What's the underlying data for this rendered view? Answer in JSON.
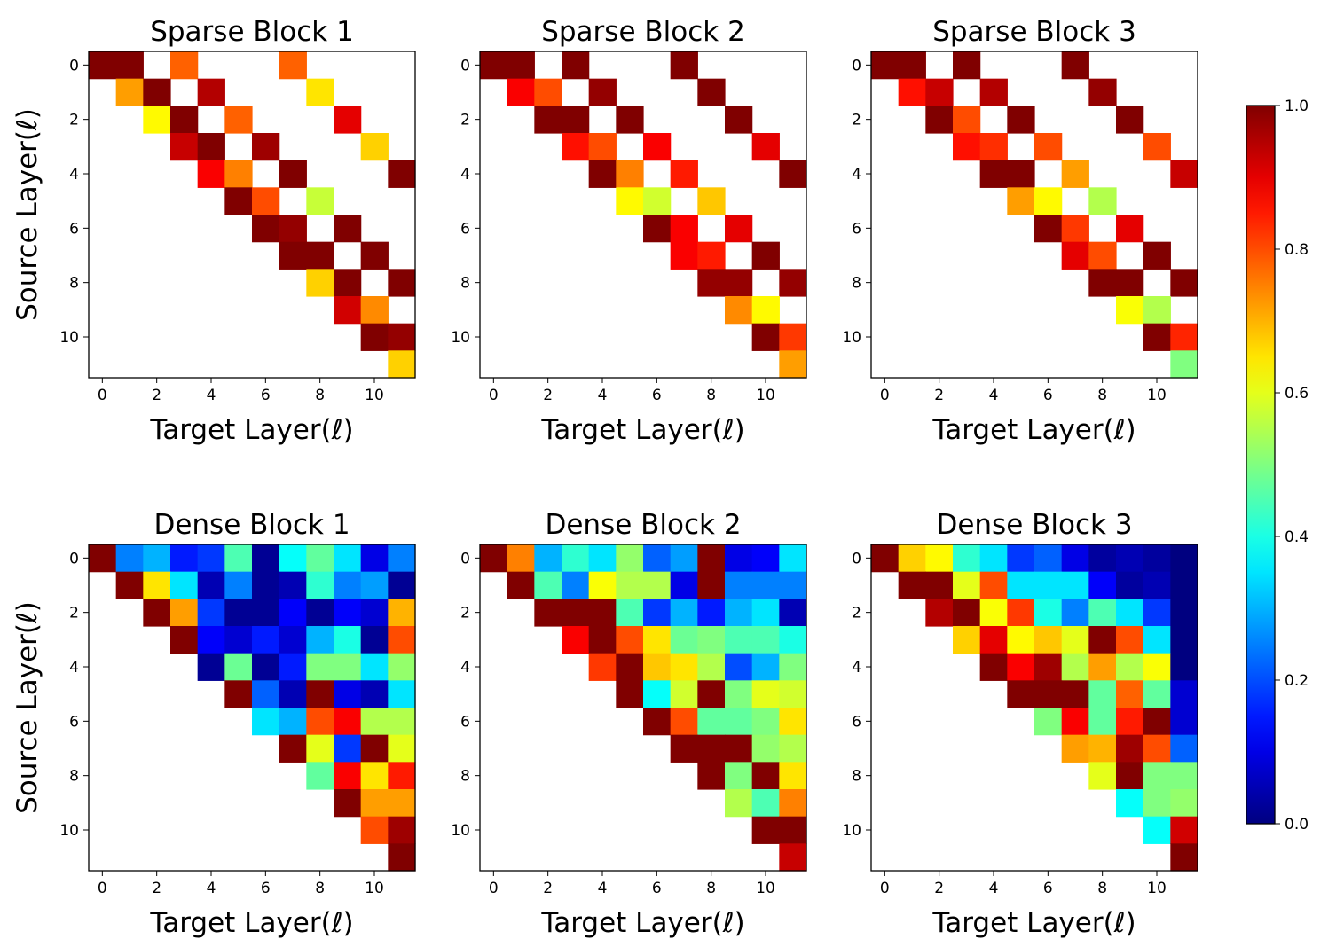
{
  "colors": {
    "colormap": "jet",
    "background": "#ffffff",
    "empty_cell": "#ffffff"
  },
  "chart_data": [
    {
      "type": "heatmap",
      "title": "Sparse Block 1",
      "xlabel": "Target Layer(ℓ)",
      "ylabel": "Source Layer(ℓ)",
      "xticks": [
        "0",
        "2",
        "4",
        "6",
        "8",
        "10"
      ],
      "yticks": [
        "0",
        "2",
        "4",
        "6",
        "8",
        "10"
      ],
      "size": 12,
      "vmin": 0.0,
      "vmax": 1.0,
      "values": [
        [
          1.0,
          1.0,
          null,
          0.78,
          null,
          null,
          null,
          0.78,
          null,
          null,
          null,
          null
        ],
        [
          null,
          0.72,
          1.0,
          null,
          0.95,
          null,
          null,
          null,
          0.65,
          null,
          null,
          null
        ],
        [
          null,
          null,
          0.63,
          1.0,
          null,
          0.78,
          null,
          null,
          null,
          0.9,
          null,
          null
        ],
        [
          null,
          null,
          null,
          0.93,
          1.0,
          null,
          0.97,
          null,
          null,
          null,
          0.67,
          null
        ],
        [
          null,
          null,
          null,
          null,
          0.88,
          0.75,
          null,
          1.0,
          null,
          null,
          null,
          1.0
        ],
        [
          null,
          null,
          null,
          null,
          null,
          1.0,
          0.8,
          null,
          0.57,
          null,
          null,
          null
        ],
        [
          null,
          null,
          null,
          null,
          null,
          null,
          1.0,
          0.98,
          null,
          1.0,
          null,
          null
        ],
        [
          null,
          null,
          null,
          null,
          null,
          null,
          null,
          1.0,
          1.0,
          null,
          1.0,
          null
        ],
        [
          null,
          null,
          null,
          null,
          null,
          null,
          null,
          null,
          0.67,
          1.0,
          null,
          1.0
        ],
        [
          null,
          null,
          null,
          null,
          null,
          null,
          null,
          null,
          null,
          0.92,
          0.74,
          null
        ],
        [
          null,
          null,
          null,
          null,
          null,
          null,
          null,
          null,
          null,
          null,
          1.0,
          0.98
        ],
        [
          null,
          null,
          null,
          null,
          null,
          null,
          null,
          null,
          null,
          null,
          null,
          0.67
        ]
      ]
    },
    {
      "type": "heatmap",
      "title": "Sparse Block 2",
      "xlabel": "Target  Layer(ℓ)",
      "ylabel": "",
      "xticks": [
        "0",
        "2",
        "4",
        "6",
        "8",
        "10"
      ],
      "yticks": [
        "0",
        "2",
        "4",
        "6",
        "8",
        "10"
      ],
      "size": 12,
      "vmin": 0.0,
      "vmax": 1.0,
      "values": [
        [
          1.0,
          1.0,
          null,
          1.0,
          null,
          null,
          null,
          1.0,
          null,
          null,
          null,
          null
        ],
        [
          null,
          0.88,
          0.8,
          null,
          0.98,
          null,
          null,
          null,
          1.0,
          null,
          null,
          null
        ],
        [
          null,
          null,
          1.0,
          1.0,
          null,
          1.0,
          null,
          null,
          null,
          1.0,
          null,
          null
        ],
        [
          null,
          null,
          null,
          0.86,
          0.8,
          null,
          0.88,
          null,
          null,
          null,
          0.9,
          null
        ],
        [
          null,
          null,
          null,
          null,
          1.0,
          0.75,
          null,
          0.85,
          null,
          null,
          null,
          1.0
        ],
        [
          null,
          null,
          null,
          null,
          null,
          0.63,
          0.58,
          null,
          0.68,
          null,
          null,
          null
        ],
        [
          null,
          null,
          null,
          null,
          null,
          null,
          1.0,
          0.88,
          null,
          0.9,
          null,
          null
        ],
        [
          null,
          null,
          null,
          null,
          null,
          null,
          null,
          0.88,
          0.85,
          null,
          1.0,
          null
        ],
        [
          null,
          null,
          null,
          null,
          null,
          null,
          null,
          null,
          0.98,
          0.98,
          null,
          0.98
        ],
        [
          null,
          null,
          null,
          null,
          null,
          null,
          null,
          null,
          null,
          0.74,
          0.63,
          null
        ],
        [
          null,
          null,
          null,
          null,
          null,
          null,
          null,
          null,
          null,
          null,
          1.0,
          0.82
        ],
        [
          null,
          null,
          null,
          null,
          null,
          null,
          null,
          null,
          null,
          null,
          null,
          0.72
        ]
      ]
    },
    {
      "type": "heatmap",
      "title": "Sparse Block 3",
      "xlabel": "Target  Layer(ℓ)",
      "ylabel": "",
      "xticks": [
        "0",
        "2",
        "4",
        "6",
        "8",
        "10"
      ],
      "yticks": [
        "0",
        "2",
        "4",
        "6",
        "8",
        "10"
      ],
      "size": 12,
      "vmin": 0.0,
      "vmax": 1.0,
      "values": [
        [
          1.0,
          1.0,
          null,
          1.0,
          null,
          null,
          null,
          1.0,
          null,
          null,
          null,
          null
        ],
        [
          null,
          0.86,
          0.93,
          null,
          0.95,
          null,
          null,
          null,
          0.98,
          null,
          null,
          null
        ],
        [
          null,
          null,
          1.0,
          0.8,
          null,
          1.0,
          null,
          null,
          null,
          1.0,
          null,
          null
        ],
        [
          null,
          null,
          null,
          0.86,
          0.83,
          null,
          0.8,
          null,
          null,
          null,
          0.8,
          null
        ],
        [
          null,
          null,
          null,
          null,
          1.0,
          1.0,
          null,
          0.72,
          null,
          null,
          null,
          0.93
        ],
        [
          null,
          null,
          null,
          null,
          null,
          0.72,
          0.63,
          null,
          0.55,
          null,
          null,
          null
        ],
        [
          null,
          null,
          null,
          null,
          null,
          null,
          1.0,
          0.82,
          null,
          0.9,
          null,
          null
        ],
        [
          null,
          null,
          null,
          null,
          null,
          null,
          null,
          0.9,
          0.8,
          null,
          1.0,
          null
        ],
        [
          null,
          null,
          null,
          null,
          null,
          null,
          null,
          null,
          1.0,
          1.0,
          null,
          1.0
        ],
        [
          null,
          null,
          null,
          null,
          null,
          null,
          null,
          null,
          null,
          0.62,
          0.55,
          null
        ],
        [
          null,
          null,
          null,
          null,
          null,
          null,
          null,
          null,
          null,
          null,
          1.0,
          0.84
        ],
        [
          null,
          null,
          null,
          null,
          null,
          null,
          null,
          null,
          null,
          null,
          null,
          0.5
        ]
      ]
    },
    {
      "type": "heatmap",
      "title": "Dense Block 1",
      "xlabel": "Target Layer(ℓ)",
      "ylabel": "Source Layer(ℓ)",
      "xticks": [
        "0",
        "2",
        "4",
        "6",
        "8",
        "10"
      ],
      "yticks": [
        "0",
        "2",
        "4",
        "6",
        "8",
        "10"
      ],
      "size": 12,
      "vmin": 0.0,
      "vmax": 1.0,
      "values": [
        [
          1.0,
          0.25,
          0.3,
          0.15,
          0.18,
          0.45,
          0.02,
          0.38,
          0.47,
          0.35,
          0.1,
          0.25
        ],
        [
          null,
          1.0,
          0.65,
          0.35,
          0.05,
          0.25,
          0.02,
          0.05,
          0.42,
          0.25,
          0.28,
          0.02
        ],
        [
          null,
          null,
          1.0,
          0.72,
          0.18,
          0.02,
          0.02,
          0.12,
          0.02,
          0.12,
          0.08,
          0.7
        ],
        [
          null,
          null,
          null,
          1.0,
          0.12,
          0.08,
          0.15,
          0.08,
          0.3,
          0.4,
          0.02,
          0.8
        ],
        [
          null,
          null,
          null,
          null,
          0.02,
          0.48,
          0.02,
          0.15,
          0.5,
          0.5,
          0.35,
          0.52
        ],
        [
          null,
          null,
          null,
          null,
          null,
          1.0,
          0.22,
          0.05,
          1.0,
          0.1,
          0.05,
          0.35
        ],
        [
          null,
          null,
          null,
          null,
          null,
          null,
          0.35,
          0.3,
          0.8,
          0.88,
          0.55,
          0.55
        ],
        [
          null,
          null,
          null,
          null,
          null,
          null,
          null,
          1.0,
          0.6,
          0.18,
          1.0,
          0.6
        ],
        [
          null,
          null,
          null,
          null,
          null,
          null,
          null,
          null,
          0.47,
          0.88,
          0.65,
          0.85
        ],
        [
          null,
          null,
          null,
          null,
          null,
          null,
          null,
          null,
          null,
          1.0,
          0.72,
          0.72
        ],
        [
          null,
          null,
          null,
          null,
          null,
          null,
          null,
          null,
          null,
          null,
          0.8,
          0.97
        ],
        [
          null,
          null,
          null,
          null,
          null,
          null,
          null,
          null,
          null,
          null,
          null,
          1.0
        ]
      ]
    },
    {
      "type": "heatmap",
      "title": "Dense Block 2",
      "xlabel": "Target Layer(ℓ)",
      "ylabel": "",
      "xticks": [
        "0",
        "2",
        "4",
        "6",
        "8",
        "10"
      ],
      "yticks": [
        "0",
        "2",
        "4",
        "6",
        "8",
        "10"
      ],
      "size": 12,
      "vmin": 0.0,
      "vmax": 1.0,
      "values": [
        [
          1.0,
          0.75,
          0.3,
          0.42,
          0.35,
          0.52,
          0.22,
          0.28,
          1.0,
          0.1,
          0.12,
          0.35
        ],
        [
          null,
          1.0,
          0.45,
          0.25,
          0.62,
          0.55,
          0.55,
          0.1,
          1.0,
          0.25,
          0.25,
          0.25
        ],
        [
          null,
          null,
          1.0,
          1.0,
          1.0,
          0.45,
          0.18,
          0.3,
          0.15,
          0.3,
          0.35,
          0.05
        ],
        [
          null,
          null,
          null,
          0.88,
          1.0,
          0.8,
          0.65,
          0.48,
          0.5,
          0.45,
          0.45,
          0.4
        ],
        [
          null,
          null,
          null,
          null,
          0.82,
          1.0,
          0.68,
          0.65,
          0.55,
          0.2,
          0.3,
          0.5
        ],
        [
          null,
          null,
          null,
          null,
          null,
          1.0,
          0.38,
          0.58,
          1.0,
          0.5,
          0.6,
          0.58
        ],
        [
          null,
          null,
          null,
          null,
          null,
          null,
          1.0,
          0.8,
          0.47,
          0.47,
          0.5,
          0.65
        ],
        [
          null,
          null,
          null,
          null,
          null,
          null,
          null,
          1.0,
          1.0,
          1.0,
          0.52,
          0.55
        ],
        [
          null,
          null,
          null,
          null,
          null,
          null,
          null,
          null,
          1.0,
          0.5,
          1.0,
          0.65
        ],
        [
          null,
          null,
          null,
          null,
          null,
          null,
          null,
          null,
          null,
          0.55,
          0.45,
          0.75
        ],
        [
          null,
          null,
          null,
          null,
          null,
          null,
          null,
          null,
          null,
          null,
          1.0,
          1.0
        ],
        [
          null,
          null,
          null,
          null,
          null,
          null,
          null,
          null,
          null,
          null,
          null,
          0.93
        ]
      ]
    },
    {
      "type": "heatmap",
      "title": "Dense Block 3",
      "xlabel": "Target Layer(ℓ)",
      "ylabel": "",
      "xticks": [
        "0",
        "2",
        "4",
        "6",
        "8",
        "10"
      ],
      "yticks": [
        "0",
        "2",
        "4",
        "6",
        "8",
        "10"
      ],
      "size": 12,
      "vmin": 0.0,
      "vmax": 1.0,
      "values": [
        [
          1.0,
          0.67,
          0.63,
          0.42,
          0.35,
          0.18,
          0.22,
          0.1,
          0.03,
          0.05,
          0.03,
          0.0
        ],
        [
          null,
          1.0,
          1.0,
          0.6,
          0.8,
          0.35,
          0.35,
          0.35,
          0.12,
          0.03,
          0.05,
          0.0
        ],
        [
          null,
          null,
          0.95,
          1.0,
          0.62,
          0.82,
          0.4,
          0.25,
          0.45,
          0.35,
          0.18,
          0.0
        ],
        [
          null,
          null,
          null,
          0.67,
          0.9,
          0.63,
          0.68,
          0.6,
          1.0,
          0.8,
          0.35,
          0.0
        ],
        [
          null,
          null,
          null,
          null,
          1.0,
          0.88,
          0.97,
          0.55,
          0.72,
          0.55,
          0.62,
          0.0
        ],
        [
          null,
          null,
          null,
          null,
          null,
          1.0,
          1.0,
          1.0,
          0.47,
          0.78,
          0.47,
          0.08
        ],
        [
          null,
          null,
          null,
          null,
          null,
          null,
          0.5,
          0.88,
          0.47,
          0.85,
          1.0,
          0.08
        ],
        [
          null,
          null,
          null,
          null,
          null,
          null,
          null,
          0.72,
          0.7,
          0.97,
          0.8,
          0.22
        ],
        [
          null,
          null,
          null,
          null,
          null,
          null,
          null,
          null,
          0.6,
          1.0,
          0.5,
          0.5
        ],
        [
          null,
          null,
          null,
          null,
          null,
          null,
          null,
          null,
          null,
          0.38,
          0.5,
          0.52
        ],
        [
          null,
          null,
          null,
          null,
          null,
          null,
          null,
          null,
          null,
          null,
          0.38,
          0.92
        ],
        [
          null,
          null,
          null,
          null,
          null,
          null,
          null,
          null,
          null,
          null,
          null,
          1.0
        ]
      ]
    }
  ],
  "colorbar": {
    "ticks": [
      "0.0",
      "0.2",
      "0.4",
      "0.6",
      "0.8",
      "1.0"
    ],
    "vmin": 0.0,
    "vmax": 1.0
  }
}
